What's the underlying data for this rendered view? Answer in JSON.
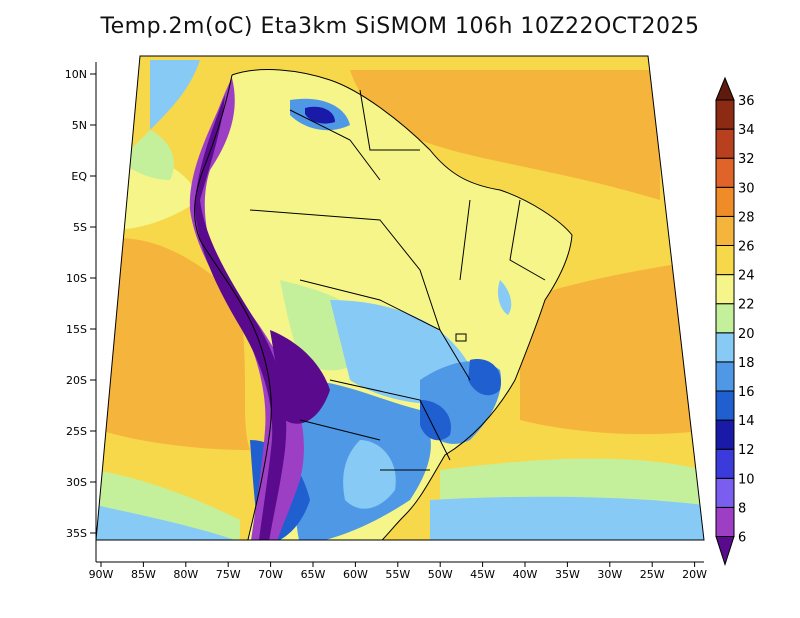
{
  "title": "Temp.2m(oC) Eta3km SiSMOM 106h 10Z22OCT2025",
  "lat_ticks": [
    {
      "lat": 10,
      "label": "10N"
    },
    {
      "lat": 5,
      "label": "5N"
    },
    {
      "lat": 0,
      "label": "EQ"
    },
    {
      "lat": -5,
      "label": "5S"
    },
    {
      "lat": -10,
      "label": "10S"
    },
    {
      "lat": -15,
      "label": "15S"
    },
    {
      "lat": -20,
      "label": "20S"
    },
    {
      "lat": -25,
      "label": "25S"
    },
    {
      "lat": -30,
      "label": "30S"
    },
    {
      "lat": -35,
      "label": "35S"
    }
  ],
  "lon_ticks": [
    {
      "lon": -90,
      "label": "90W"
    },
    {
      "lon": -85,
      "label": "85W"
    },
    {
      "lon": -80,
      "label": "80W"
    },
    {
      "lon": -75,
      "label": "75W"
    },
    {
      "lon": -70,
      "label": "70W"
    },
    {
      "lon": -65,
      "label": "65W"
    },
    {
      "lon": -60,
      "label": "60W"
    },
    {
      "lon": -55,
      "label": "55W"
    },
    {
      "lon": -50,
      "label": "50W"
    },
    {
      "lon": -45,
      "label": "45W"
    },
    {
      "lon": -40,
      "label": "40W"
    },
    {
      "lon": -35,
      "label": "35W"
    },
    {
      "lon": -30,
      "label": "30W"
    },
    {
      "lon": -25,
      "label": "25W"
    },
    {
      "lon": -20,
      "label": "20W"
    }
  ],
  "colorbar": {
    "labels": [
      "6",
      "8",
      "10",
      "12",
      "14",
      "16",
      "18",
      "20",
      "22",
      "24",
      "26",
      "28",
      "30",
      "32",
      "34",
      "36"
    ],
    "colors": [
      "#5a0a8c",
      "#9c3fc4",
      "#7a5ef0",
      "#3b3bdc",
      "#1a1aa8",
      "#1f5fd0",
      "#4f98e6",
      "#86caf5",
      "#c4f09c",
      "#f5f58a",
      "#f7d84a",
      "#f5b43c",
      "#f08c28",
      "#e0642a",
      "#b8401e",
      "#8c2a14",
      "#5e1a0a"
    ]
  }
}
